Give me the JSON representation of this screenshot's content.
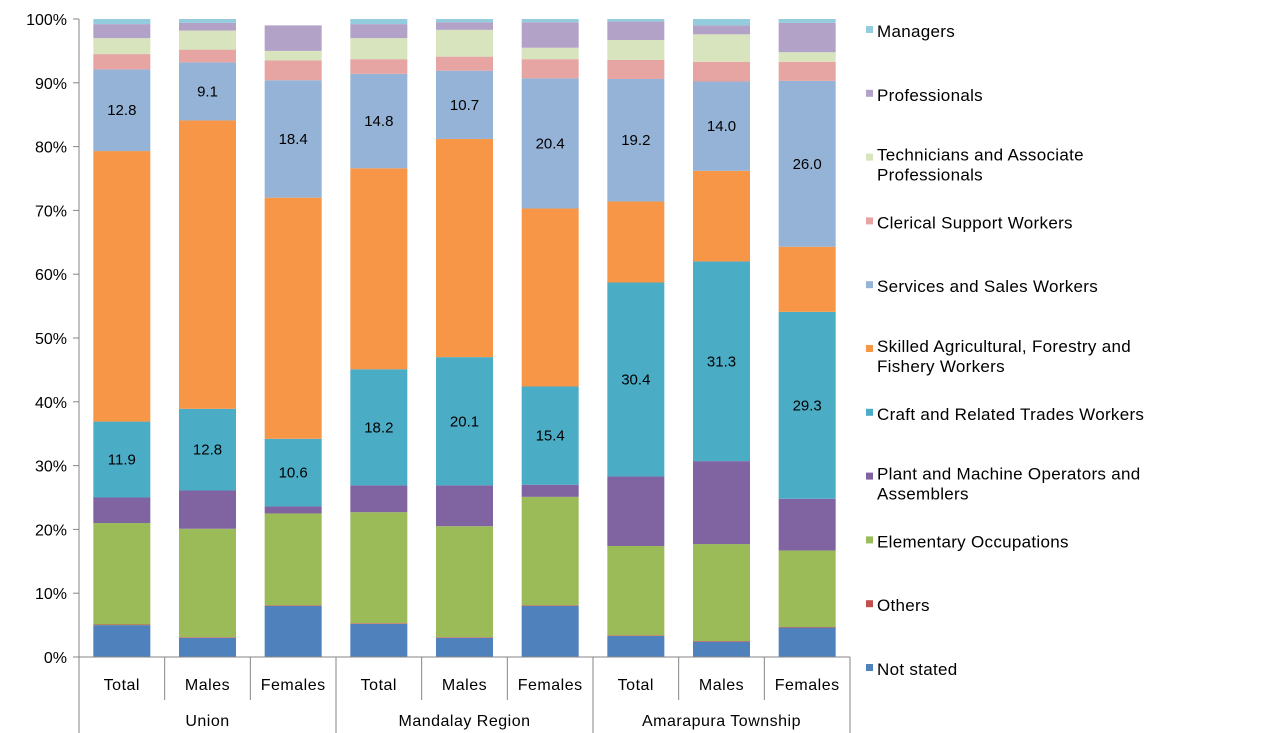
{
  "chart_data": {
    "type": "bar",
    "stacked": true,
    "percent_scale": true,
    "title": "",
    "xlabel": "",
    "ylabel": "",
    "ylim": [
      0,
      100
    ],
    "y_ticks": [
      "0%",
      "10%",
      "20%",
      "30%",
      "40%",
      "50%",
      "60%",
      "70%",
      "80%",
      "90%",
      "100%"
    ],
    "grid": false,
    "legend_position": "right",
    "groups": [
      {
        "label": "Union",
        "categories": [
          "Total",
          "Males",
          "Females"
        ]
      },
      {
        "label": "Mandalay Region",
        "categories": [
          "Total",
          "Males",
          "Females"
        ]
      },
      {
        "label": "Amarapura Township",
        "categories": [
          "Total",
          "Males",
          "Females"
        ]
      }
    ],
    "series": [
      {
        "name": "Not stated",
        "color": "#4f81bd",
        "values": [
          5.0,
          3.0,
          8.0,
          5.2,
          3.0,
          8.0,
          3.3,
          2.4,
          4.6
        ]
      },
      {
        "name": "Others",
        "color": "#c0504d",
        "values": [
          0.1,
          0.1,
          0.1,
          0.1,
          0.1,
          0.1,
          0.1,
          0.1,
          0.1
        ]
      },
      {
        "name": "Elementary Occupations",
        "color": "#9bbb59",
        "values": [
          15.9,
          17.0,
          14.4,
          17.4,
          17.4,
          17.0,
          14.0,
          15.2,
          12.0
        ]
      },
      {
        "name": "Plant and Machine Operators and Assemblers",
        "color": "#8064a2",
        "values": [
          4.0,
          6.0,
          1.1,
          4.2,
          6.4,
          1.9,
          10.9,
          13.0,
          8.1
        ]
      },
      {
        "name": "Craft and Related Trades Workers",
        "color": "#4bacc6",
        "values": [
          11.9,
          12.8,
          10.6,
          18.2,
          20.1,
          15.4,
          30.4,
          31.3,
          29.3
        ]
      },
      {
        "name": "Skilled Agricultural, Forestry and Fishery Workers",
        "color": "#f79646",
        "values": [
          42.4,
          45.2,
          37.8,
          31.5,
          34.2,
          27.9,
          12.7,
          14.2,
          10.2
        ]
      },
      {
        "name": "Services and Sales Workers",
        "color": "#95b3d7",
        "values": [
          12.8,
          9.1,
          18.4,
          14.8,
          10.7,
          20.4,
          19.2,
          14.0,
          26.0
        ]
      },
      {
        "name": "Clerical Support Workers",
        "color": "#e6a5a3",
        "values": [
          2.4,
          2.0,
          3.1,
          2.3,
          2.2,
          3.0,
          3.0,
          3.1,
          3.0
        ]
      },
      {
        "name": "Technicians and Associate Professionals",
        "color": "#d7e4bd",
        "values": [
          2.5,
          3.0,
          1.5,
          3.3,
          4.2,
          1.8,
          3.1,
          4.3,
          1.5
        ]
      },
      {
        "name": "Professionals",
        "color": "#b3a2c7",
        "values": [
          2.2,
          1.2,
          4.0,
          2.2,
          1.2,
          4.0,
          2.9,
          1.4,
          4.6
        ]
      },
      {
        "name": "Managers",
        "color": "#93cddd",
        "values": [
          0.8,
          0.6,
          0.0,
          0.8,
          0.5,
          0.5,
          0.4,
          1.0,
          0.6
        ]
      }
    ],
    "data_labels": [
      {
        "series": "Craft and Related Trades Workers",
        "values": [
          "11.9",
          "12.8",
          "10.6",
          "18.2",
          "20.1",
          "15.4",
          "30.4",
          "31.3",
          "29.3"
        ]
      },
      {
        "series": "Services and Sales Workers",
        "values": [
          "12.8",
          "9.1",
          "18.4",
          "14.8",
          "10.7",
          "20.4",
          "19.2",
          "14.0",
          "26.0"
        ]
      }
    ],
    "legend": [
      {
        "label": "Managers",
        "color": "#93cddd"
      },
      {
        "label": "Professionals",
        "color": "#b3a2c7"
      },
      {
        "label": "Technicians and Associate Professionals",
        "color": "#d7e4bd"
      },
      {
        "label": "Clerical Support Workers",
        "color": "#e6a5a3"
      },
      {
        "label": "Services and Sales Workers",
        "color": "#95b3d7"
      },
      {
        "label": "Skilled Agricultural, Forestry and Fishery Workers",
        "color": "#f79646"
      },
      {
        "label": "Craft and Related Trades Workers",
        "color": "#4bacc6"
      },
      {
        "label": "Plant and Machine Operators and Assemblers",
        "color": "#8064a2"
      },
      {
        "label": "Elementary Occupations",
        "color": "#9bbb59"
      },
      {
        "label": "Others",
        "color": "#c0504d"
      },
      {
        "label": "Not stated",
        "color": "#4f81bd"
      }
    ]
  }
}
